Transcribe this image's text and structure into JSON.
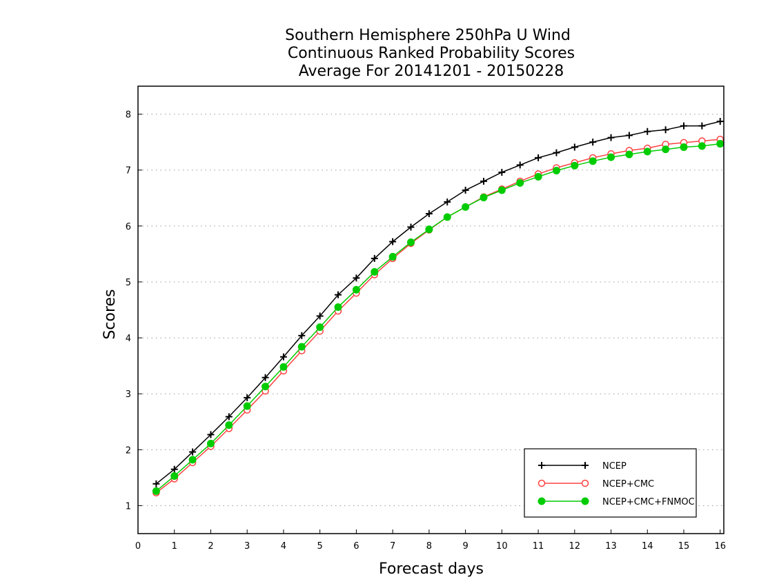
{
  "chart_data": {
    "type": "line",
    "title": [
      "Southern Hemisphere 250hPa U Wind",
      "Continuous Ranked Probability Scores",
      "Average For 20141201 - 20150228"
    ],
    "xlabel": "Forecast days",
    "ylabel": "Scores",
    "xlim": [
      0,
      16.1
    ],
    "ylim": [
      0.5,
      8.5
    ],
    "xticks": [
      0,
      1,
      2,
      3,
      4,
      5,
      6,
      7,
      8,
      9,
      10,
      11,
      12,
      13,
      14,
      15,
      16
    ],
    "yticks": [
      1,
      2,
      3,
      4,
      5,
      6,
      7,
      8
    ],
    "grid": "horizontal dotted",
    "legend_position": "bottom-right",
    "x": [
      0.5,
      1,
      1.5,
      2,
      2.5,
      3,
      3.5,
      4,
      4.5,
      5,
      5.5,
      6,
      6.5,
      7,
      7.5,
      8,
      8.5,
      9,
      9.5,
      10,
      10.5,
      11,
      11.5,
      12,
      12.5,
      13,
      13.5,
      14,
      14.5,
      15,
      15.5,
      16
    ],
    "series": [
      {
        "name": "NCEP",
        "color": "#000000",
        "marker": "plus",
        "values": [
          1.39,
          1.65,
          1.96,
          2.27,
          2.59,
          2.93,
          3.29,
          3.66,
          4.04,
          4.39,
          4.77,
          5.07,
          5.42,
          5.72,
          5.98,
          6.22,
          6.43,
          6.64,
          6.8,
          6.96,
          7.09,
          7.22,
          7.31,
          7.41,
          7.5,
          7.58,
          7.62,
          7.69,
          7.72,
          7.79,
          7.79,
          7.87
        ]
      },
      {
        "name": "NCEP+CMC",
        "color": "#ff4040",
        "marker": "open-circle",
        "values": [
          1.23,
          1.48,
          1.77,
          2.06,
          2.38,
          2.71,
          3.05,
          3.41,
          3.77,
          4.12,
          4.48,
          4.8,
          5.13,
          5.42,
          5.69,
          5.93,
          6.16,
          6.34,
          6.52,
          6.66,
          6.8,
          6.93,
          7.04,
          7.13,
          7.22,
          7.29,
          7.35,
          7.39,
          7.46,
          7.49,
          7.52,
          7.55
        ]
      },
      {
        "name": "NCEP+CMC+FNMOC",
        "color": "#00cc00",
        "marker": "filled-circle",
        "values": [
          1.26,
          1.53,
          1.82,
          2.11,
          2.44,
          2.78,
          3.13,
          3.48,
          3.84,
          4.19,
          4.55,
          4.86,
          5.18,
          5.45,
          5.71,
          5.94,
          6.16,
          6.34,
          6.51,
          6.64,
          6.77,
          6.88,
          6.99,
          7.08,
          7.16,
          7.23,
          7.28,
          7.33,
          7.37,
          7.41,
          7.43,
          7.47
        ]
      }
    ]
  }
}
